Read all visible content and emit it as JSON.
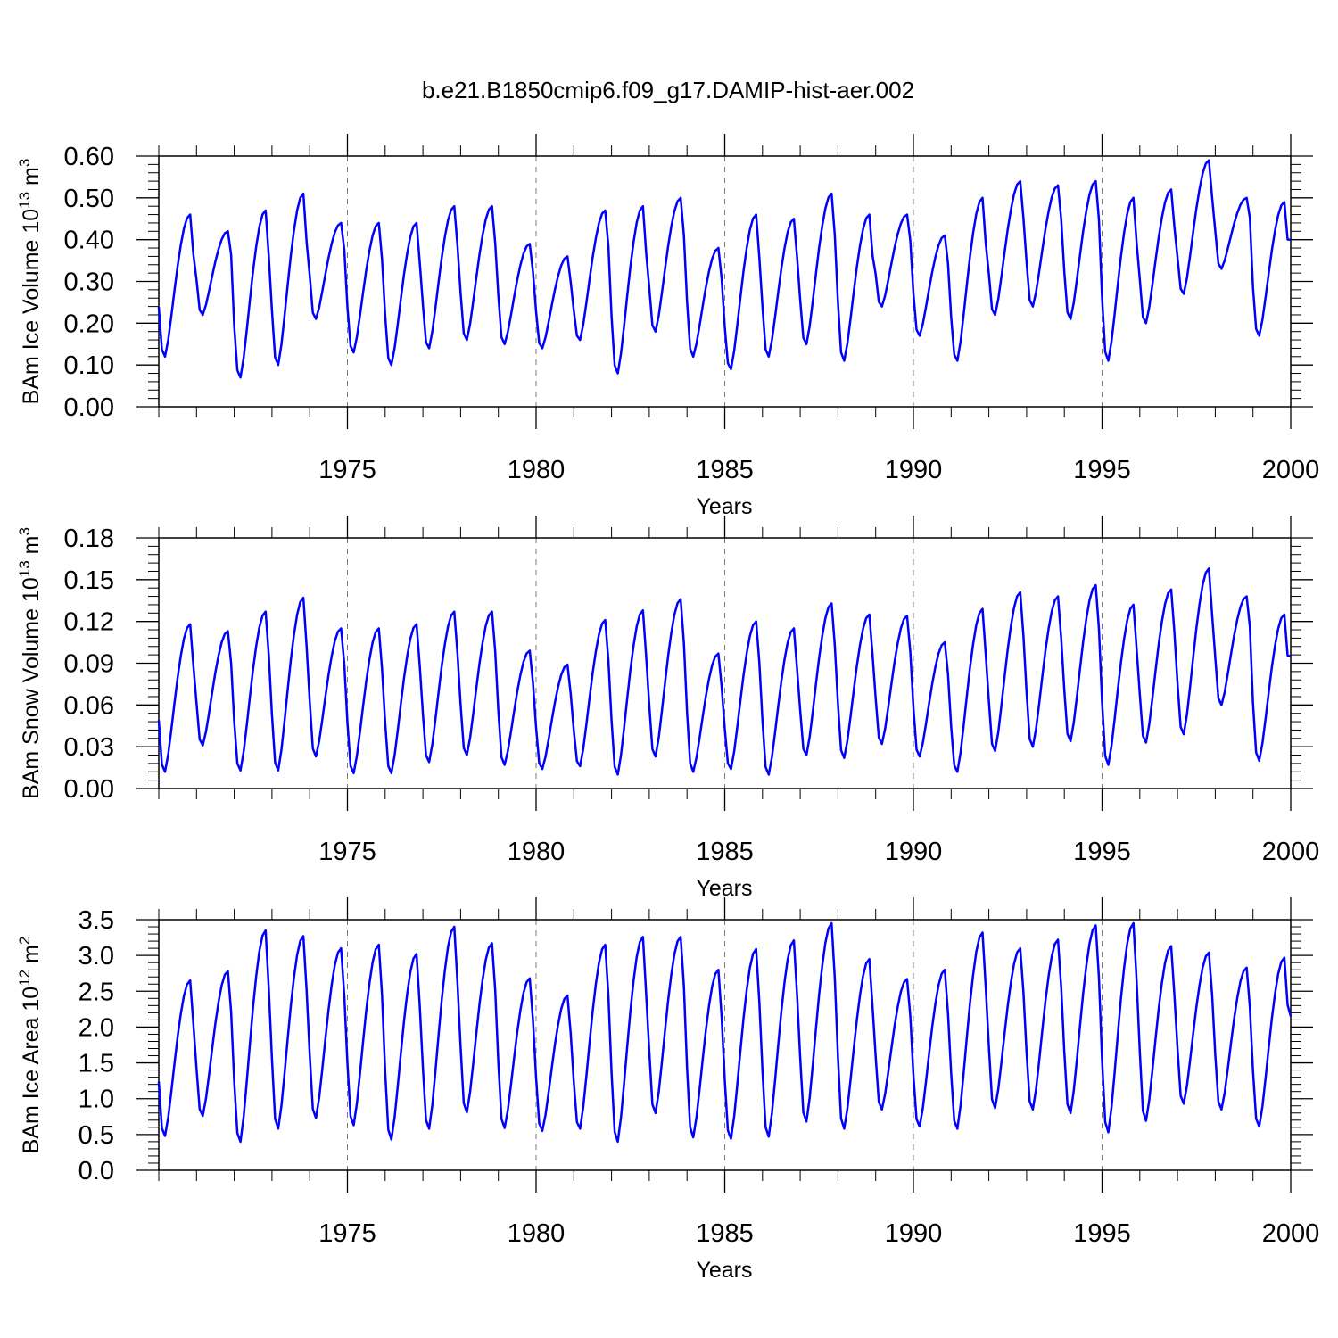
{
  "title": "b.e21.B1850cmip6.f09_g17.DAMIP-hist-aer.002",
  "colors": {
    "line": "#0000ff",
    "axis": "#000000",
    "grid": "#777777"
  },
  "chart_data": [
    {
      "type": "line",
      "name": "ice-volume",
      "ylabel_main": "BAm Ice Volume 10",
      "ylabel_exp": "13",
      "ylabel_unit": " m",
      "ylabel_unit_exp": "3",
      "xlabel": "Years",
      "xlim": [
        1970.0,
        2000.0
      ],
      "ylim": [
        0.0,
        0.6
      ],
      "x_ticks": [
        1975,
        1980,
        1985,
        1990,
        1995,
        2000
      ],
      "x_tick_labels": [
        "1975",
        "1980",
        "1985",
        "1990",
        "1995",
        "2000"
      ],
      "y_ticks": [
        0.0,
        0.1,
        0.2,
        0.3,
        0.4,
        0.5,
        0.6
      ],
      "y_tick_labels": [
        "0.00",
        "0.10",
        "0.20",
        "0.30",
        "0.40",
        "0.50",
        "0.60"
      ],
      "series": [
        {
          "name": "BAm Ice Volume",
          "start_year": 1970.0,
          "step": 0.0833333,
          "seasonal_peaks": [
            0.46,
            0.42,
            0.47,
            0.51,
            0.44,
            0.44,
            0.44,
            0.48,
            0.48,
            0.39,
            0.36,
            0.47,
            0.48,
            0.5,
            0.38,
            0.46,
            0.45,
            0.51,
            0.46,
            0.46,
            0.41,
            0.5,
            0.54,
            0.53,
            0.54,
            0.5,
            0.52,
            0.59,
            0.5,
            0.49
          ],
          "seasonal_troughs": [
            0.12,
            0.22,
            0.07,
            0.1,
            0.21,
            0.13,
            0.1,
            0.14,
            0.16,
            0.15,
            0.14,
            0.16,
            0.08,
            0.18,
            0.12,
            0.09,
            0.12,
            0.15,
            0.11,
            0.24,
            0.17,
            0.11,
            0.22,
            0.24,
            0.21,
            0.11,
            0.2,
            0.27,
            0.33,
            0.17
          ],
          "end_value": 0.4
        }
      ]
    },
    {
      "type": "line",
      "name": "snow-volume",
      "ylabel_main": "BAm Snow Volume 10",
      "ylabel_exp": "13",
      "ylabel_unit": " m",
      "ylabel_unit_exp": "3",
      "xlabel": "Years",
      "xlim": [
        1970.0,
        2000.0
      ],
      "ylim": [
        0.0,
        0.18
      ],
      "x_ticks": [
        1975,
        1980,
        1985,
        1990,
        1995,
        2000
      ],
      "x_tick_labels": [
        "1975",
        "1980",
        "1985",
        "1990",
        "1995",
        "2000"
      ],
      "y_ticks": [
        0.0,
        0.03,
        0.06,
        0.09,
        0.12,
        0.15,
        0.18
      ],
      "y_tick_labels": [
        "0.00",
        "0.03",
        "0.06",
        "0.09",
        "0.12",
        "0.15",
        "0.18"
      ],
      "series": [
        {
          "name": "BAm Snow Volume",
          "start_year": 1970.0,
          "step": 0.0833333,
          "seasonal_peaks": [
            0.118,
            0.113,
            0.127,
            0.137,
            0.115,
            0.115,
            0.118,
            0.127,
            0.127,
            0.099,
            0.089,
            0.121,
            0.128,
            0.136,
            0.097,
            0.12,
            0.115,
            0.133,
            0.125,
            0.124,
            0.105,
            0.129,
            0.141,
            0.138,
            0.146,
            0.132,
            0.143,
            0.158,
            0.138,
            0.125
          ],
          "seasonal_troughs": [
            0.012,
            0.031,
            0.013,
            0.013,
            0.023,
            0.011,
            0.011,
            0.019,
            0.024,
            0.017,
            0.014,
            0.016,
            0.01,
            0.023,
            0.012,
            0.014,
            0.01,
            0.024,
            0.022,
            0.032,
            0.023,
            0.012,
            0.027,
            0.03,
            0.034,
            0.017,
            0.033,
            0.039,
            0.06,
            0.02
          ],
          "end_value": 0.095
        }
      ]
    },
    {
      "type": "line",
      "name": "ice-area",
      "ylabel_main": "BAm Ice Area 10",
      "ylabel_exp": "12",
      "ylabel_unit": " m",
      "ylabel_unit_exp": "2",
      "xlabel": "Years",
      "xlim": [
        1970.0,
        2000.0
      ],
      "ylim": [
        0.0,
        3.5
      ],
      "x_ticks": [
        1975,
        1980,
        1985,
        1990,
        1995,
        2000
      ],
      "x_tick_labels": [
        "1975",
        "1980",
        "1985",
        "1990",
        "1995",
        "2000"
      ],
      "y_ticks": [
        0.0,
        0.5,
        1.0,
        1.5,
        2.0,
        2.5,
        3.0,
        3.5
      ],
      "y_tick_labels": [
        "0.0",
        "0.5",
        "1.0",
        "1.5",
        "2.0",
        "2.5",
        "3.0",
        "3.5"
      ],
      "series": [
        {
          "name": "BAm Ice Area",
          "start_year": 1970.0,
          "step": 0.0833333,
          "seasonal_peaks": [
            2.65,
            2.78,
            3.35,
            3.27,
            3.1,
            3.15,
            3.02,
            3.4,
            3.17,
            2.68,
            2.44,
            3.15,
            3.26,
            3.26,
            2.8,
            3.09,
            3.21,
            3.45,
            2.95,
            2.67,
            2.8,
            3.32,
            3.1,
            3.22,
            3.42,
            3.45,
            3.13,
            3.04,
            2.83,
            2.97
          ],
          "seasonal_troughs": [
            0.48,
            0.76,
            0.4,
            0.58,
            0.73,
            0.63,
            0.43,
            0.58,
            0.81,
            0.59,
            0.55,
            0.58,
            0.4,
            0.8,
            0.46,
            0.44,
            0.47,
            0.68,
            0.58,
            0.85,
            0.61,
            0.58,
            0.87,
            0.85,
            0.8,
            0.53,
            0.69,
            0.93,
            0.85,
            0.61
          ],
          "end_value": 2.15
        }
      ]
    }
  ]
}
